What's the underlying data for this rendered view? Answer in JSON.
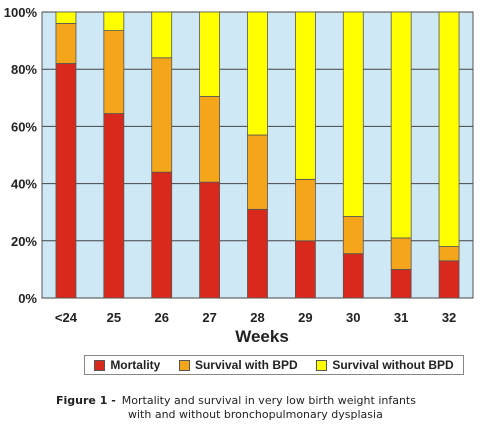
{
  "chart_data": {
    "type": "bar",
    "stacked": true,
    "categories": [
      "<24",
      "25",
      "26",
      "27",
      "28",
      "29",
      "30",
      "31",
      "32"
    ],
    "series": [
      {
        "name": "Mortality",
        "color": "#d9291c",
        "values": [
          82,
          64.5,
          44,
          40.5,
          31,
          20,
          15.5,
          10,
          13
        ]
      },
      {
        "name": "Survival with BPD",
        "color": "#f5a519",
        "values": [
          14,
          29,
          40,
          30,
          26,
          21.5,
          13,
          11,
          5
        ]
      },
      {
        "name": "Survival without BPD",
        "color": "#ffff00",
        "values": [
          4,
          6.5,
          16,
          29.5,
          43,
          58.5,
          71.5,
          79,
          82
        ]
      }
    ],
    "xlabel": "Weeks",
    "ylabel": "",
    "ylim": [
      0,
      100
    ],
    "yticks": [
      "0%",
      "20%",
      "40%",
      "60%",
      "80%",
      "100%"
    ],
    "grid": true,
    "plot_background": "#cfe8f5",
    "legend_position": "bottom"
  },
  "caption": {
    "label": "Figure 1 -",
    "line1": "Mortality and survival in very low birth weight infants",
    "line2": "with and without bronchopulmonary dysplasia"
  }
}
